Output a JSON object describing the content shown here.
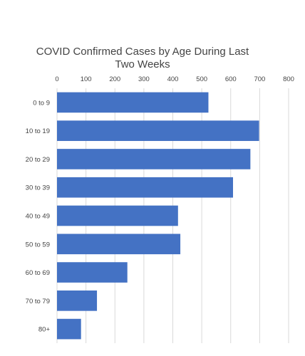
{
  "chart_data": {
    "type": "bar",
    "orientation": "horizontal",
    "title": "COVID Confirmed Cases by Age During Last Two Weeks",
    "title_lines": [
      "COVID Confirmed Cases by Age During Last",
      "Two Weeks"
    ],
    "xlabel": "",
    "ylabel": "",
    "xlim": [
      0,
      800
    ],
    "x_ticks": [
      0,
      100,
      200,
      300,
      400,
      500,
      600,
      700,
      800
    ],
    "x_axis_position": "top",
    "grid": true,
    "legend": "none",
    "bar_color": "#4472c4",
    "categories": [
      "0 to 9",
      "10 to 19",
      "20 to 29",
      "30 to 39",
      "40 to 49",
      "50 to 59",
      "60 to 69",
      "70 to 79",
      "80+"
    ],
    "values": [
      523,
      698,
      668,
      608,
      418,
      426,
      243,
      138,
      83
    ]
  }
}
